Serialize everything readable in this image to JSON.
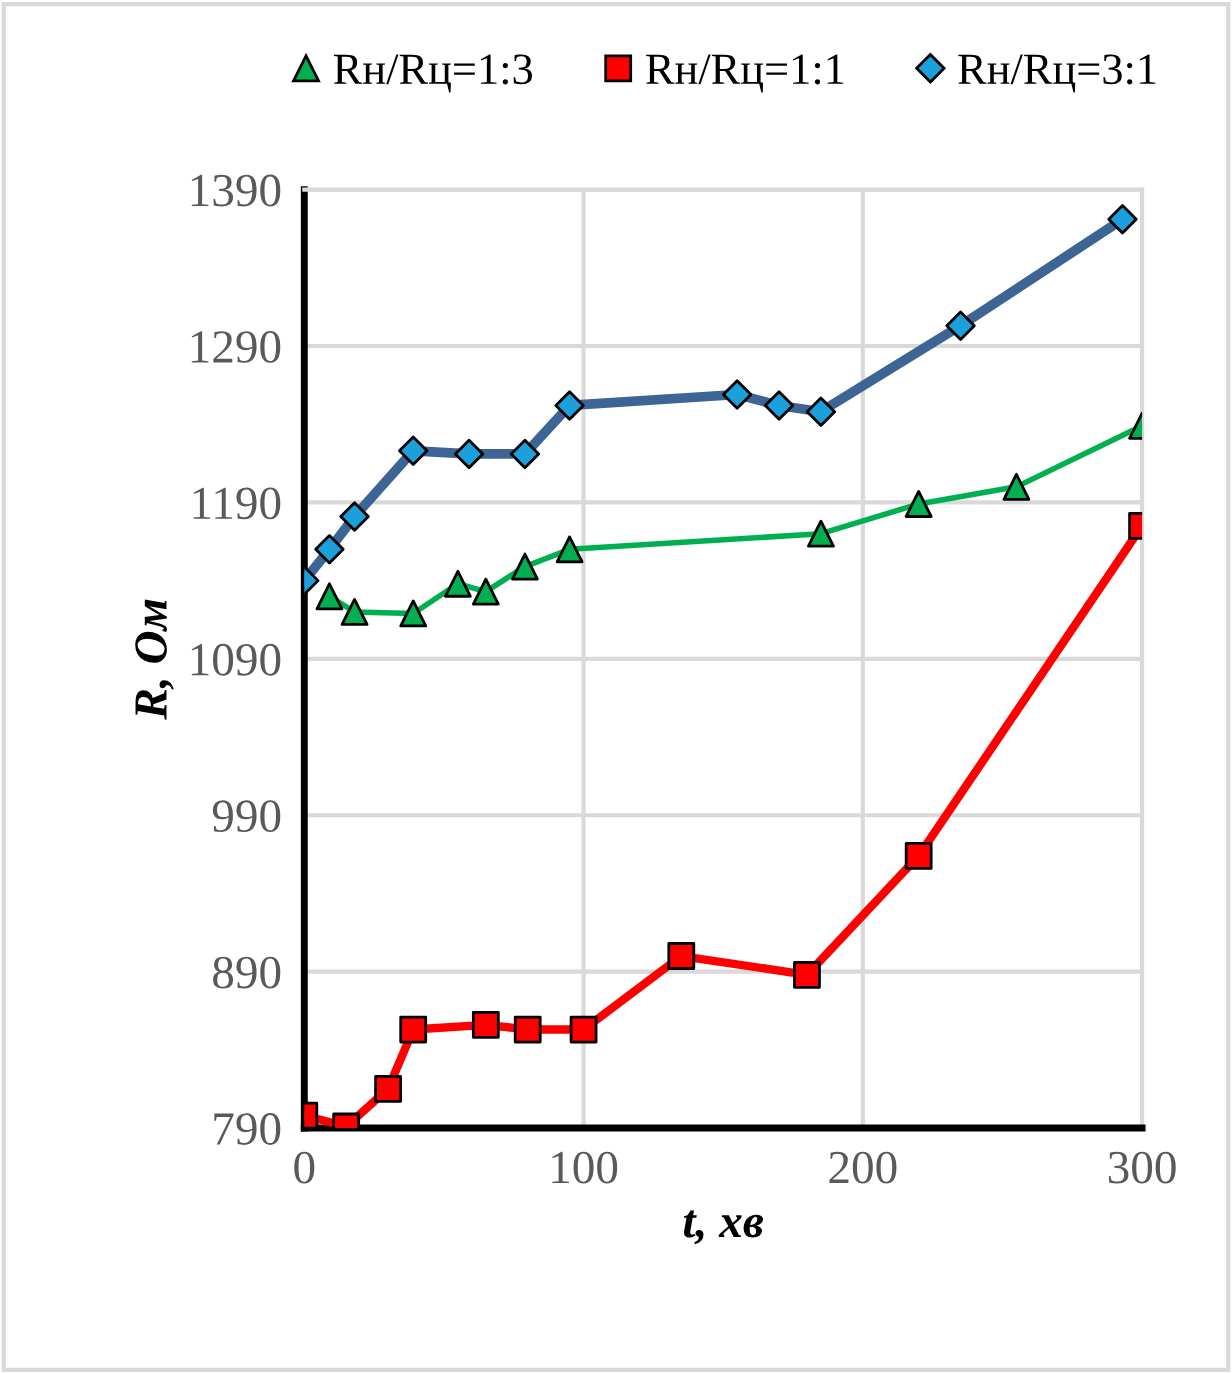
{
  "chart_data": {
    "type": "line",
    "xlabel": "t, хв",
    "ylabel": "R, Ом",
    "xlim": [
      0,
      300
    ],
    "ylim": [
      790,
      1390
    ],
    "xticks": [
      0,
      100,
      200,
      300
    ],
    "yticks": [
      790,
      890,
      990,
      1090,
      1190,
      1290,
      1390
    ],
    "grid": true,
    "legend": "top",
    "series": [
      {
        "name": "Rн/Rц=1:3",
        "color": "#00b050",
        "marker": "triangle",
        "x": [
          9,
          18,
          39,
          55,
          65,
          79,
          95,
          185,
          220,
          255,
          300
        ],
        "values": [
          1130,
          1120,
          1119,
          1138,
          1133,
          1149,
          1160,
          1170,
          1189,
          1200,
          1239
        ]
      },
      {
        "name": "Rн/Rц=1:1",
        "color": "#ff0000",
        "marker": "square",
        "x": [
          0,
          15,
          30,
          39,
          65,
          80,
          100,
          135,
          180,
          220,
          300
        ],
        "values": [
          798,
          791,
          815,
          853,
          856,
          853,
          853,
          900,
          888,
          964,
          1175
        ]
      },
      {
        "name": "Rн/Rц=3:1",
        "color": "#3c6494",
        "marker": "diamond",
        "colors": [
          "#1ca0dc",
          "#1ca0dc",
          "#1ca0dc",
          "#1ca0dc",
          "#1ca0dc",
          "#1ca0dc",
          "#1ca0dc",
          "#1ca0dc",
          "#1ca0dc",
          "#1ca0dc",
          "#1ca0dc",
          "#1ca0dc"
        ],
        "x": [
          0,
          9,
          18,
          39,
          59,
          79,
          95,
          155,
          170,
          185,
          235,
          293
        ],
        "values": [
          1140,
          1160,
          1181,
          1223,
          1221,
          1221,
          1252,
          1259,
          1252,
          1248,
          1303,
          1371
        ]
      }
    ]
  }
}
